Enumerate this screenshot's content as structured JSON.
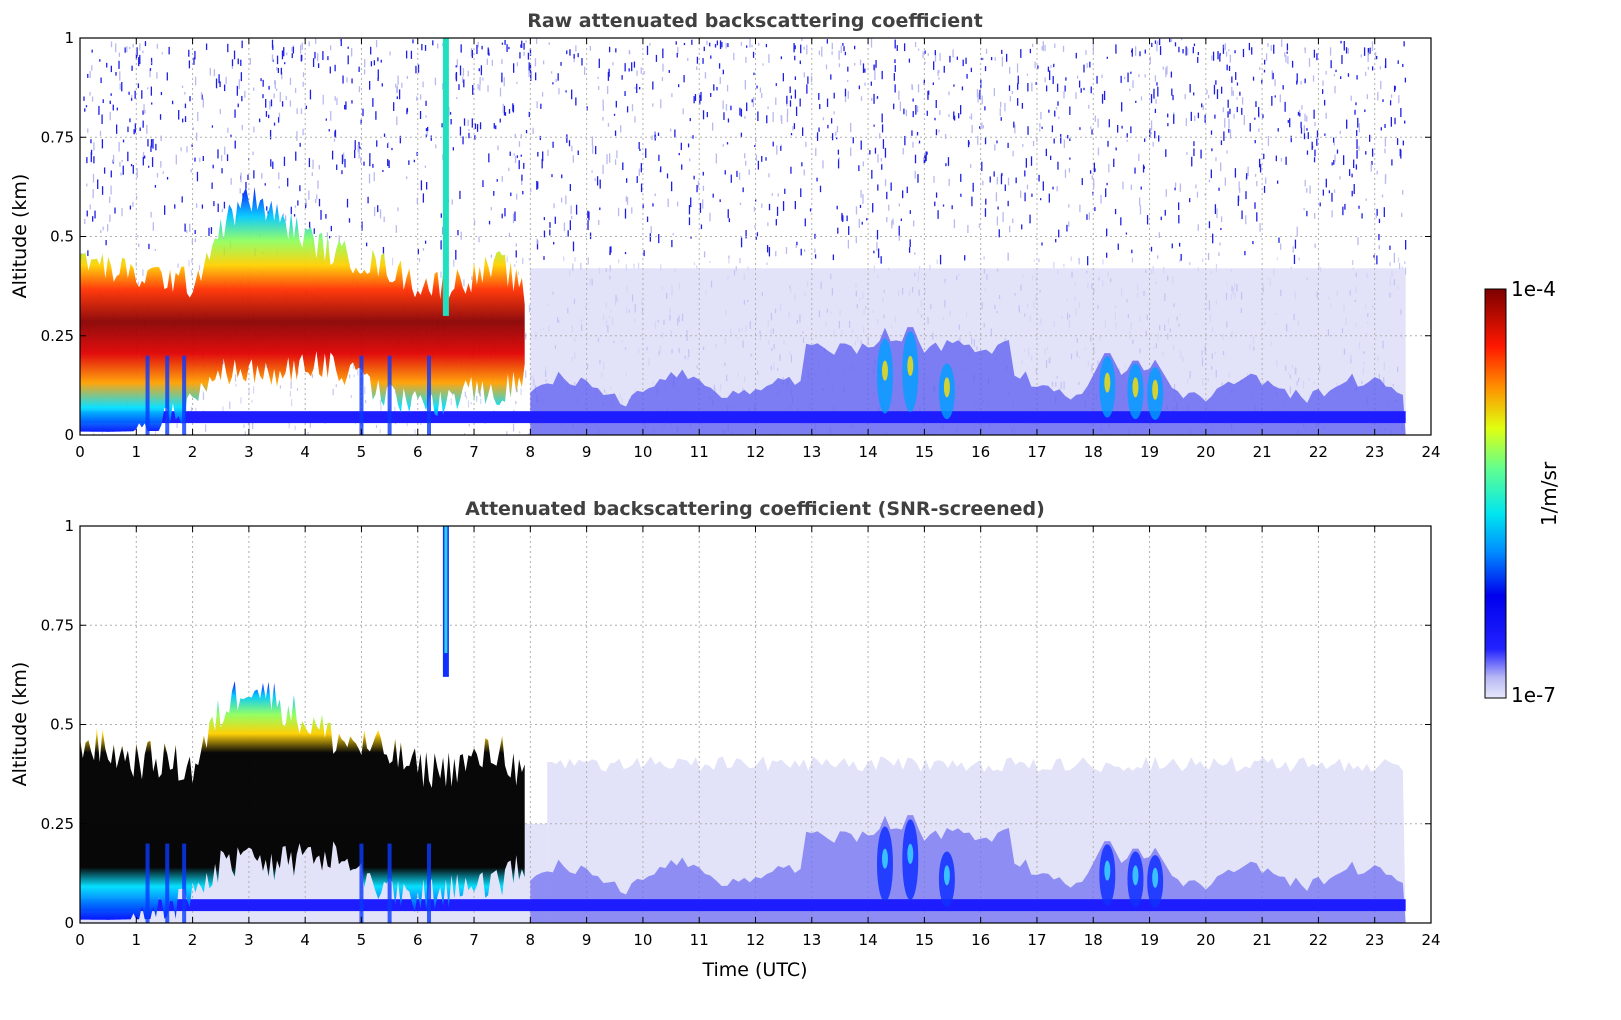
{
  "chart_data": [
    {
      "type": "heatmap",
      "title": "Raw attenuated backscattering coefficient",
      "xlabel": "",
      "ylabel": "Altitude (km)",
      "xlim": [
        0,
        24
      ],
      "ylim": [
        0,
        1
      ],
      "xticks": [
        "0",
        "1",
        "2",
        "3",
        "4",
        "5",
        "6",
        "7",
        "8",
        "9",
        "10",
        "11",
        "12",
        "13",
        "14",
        "15",
        "16",
        "17",
        "18",
        "19",
        "20",
        "21",
        "22",
        "23",
        "24"
      ],
      "yticks": [
        "0",
        "0.25",
        "0.5",
        "0.75",
        "1"
      ],
      "grid": true,
      "data_time_range": [
        0,
        23.55
      ],
      "colorscale": "jet",
      "log_color_range": [
        -7,
        -4
      ],
      "aerosol_layer": {
        "time": [
          0,
          0.5,
          1.0,
          1.5,
          2.0,
          2.5,
          3.0,
          3.5,
          4.0,
          4.5,
          5.0,
          5.5,
          6.0,
          6.5,
          7.0,
          7.5,
          7.9
        ],
        "center_km": [
          0.17,
          0.16,
          0.19,
          0.21,
          0.22,
          0.33,
          0.37,
          0.34,
          0.33,
          0.31,
          0.28,
          0.25,
          0.22,
          0.22,
          0.25,
          0.26,
          0.25
        ],
        "top_km": [
          0.45,
          0.42,
          0.4,
          0.4,
          0.38,
          0.52,
          0.6,
          0.55,
          0.5,
          0.46,
          0.44,
          0.42,
          0.38,
          0.38,
          0.4,
          0.43,
          0.35
        ]
      },
      "low_cloud_features": [
        {
          "time": 14.3,
          "top_km": 0.27
        },
        {
          "time": 14.75,
          "top_km": 0.29
        },
        {
          "time": 15.4,
          "top_km": 0.2
        },
        {
          "time": 18.25,
          "top_km": 0.22
        },
        {
          "time": 18.75,
          "top_km": 0.2
        },
        {
          "time": 19.1,
          "top_km": 0.19
        }
      ],
      "vertical_plume": {
        "time": 6.5,
        "bottom_km": 0.3,
        "top_km": 1.0
      }
    },
    {
      "type": "heatmap",
      "title": "Attenuated backscattering coefficient (SNR-screened)",
      "xlabel": "Time (UTC)",
      "ylabel": "Altitude (km)",
      "xlim": [
        0,
        24
      ],
      "ylim": [
        0,
        1
      ],
      "xticks": [
        "0",
        "1",
        "2",
        "3",
        "4",
        "5",
        "6",
        "7",
        "8",
        "9",
        "10",
        "11",
        "12",
        "13",
        "14",
        "15",
        "16",
        "17",
        "18",
        "19",
        "20",
        "21",
        "22",
        "23",
        "24"
      ],
      "yticks": [
        "0",
        "0.25",
        "0.5",
        "0.75",
        "1"
      ],
      "grid": true,
      "data_time_range": [
        0,
        23.55
      ],
      "colorscale": "jet",
      "saturated_color": "#000000",
      "log_color_range": [
        -7,
        -4
      ],
      "screen_top_km": 0.42
    }
  ],
  "colorbar": {
    "label": "1/m/sr",
    "max_label": "1e-4",
    "min_label": "1e-7",
    "scale": "log"
  }
}
